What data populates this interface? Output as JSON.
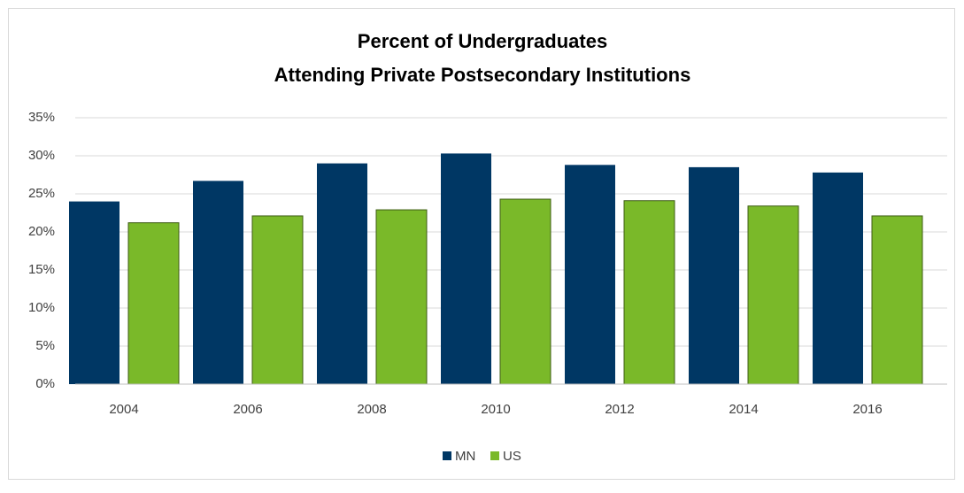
{
  "chart_data": {
    "type": "bar",
    "title": [
      "Percent of Undergraduates",
      "Attending Private Postsecondary Institutions"
    ],
    "categories": [
      "2004",
      "2006",
      "2008",
      "2010",
      "2012",
      "2014",
      "2016"
    ],
    "series": [
      {
        "name": "MN",
        "color": "#003764",
        "values": [
          24,
          26.7,
          29,
          30.3,
          28.8,
          28.5,
          27.8
        ]
      },
      {
        "name": "US",
        "color": "#7ab929",
        "values": [
          21.2,
          22.1,
          22.9,
          24.3,
          24.1,
          23.4,
          22.1
        ]
      }
    ],
    "ylim": [
      0,
      35
    ],
    "yticks": [
      {
        "value": 0,
        "label": "0%"
      },
      {
        "value": 5,
        "label": "5%"
      },
      {
        "value": 10,
        "label": "10%"
      },
      {
        "value": 15,
        "label": "15%"
      },
      {
        "value": 20,
        "label": "20%"
      },
      {
        "value": 25,
        "label": "25%"
      },
      {
        "value": 30,
        "label": "30%"
      },
      {
        "value": 35,
        "label": "35%"
      }
    ],
    "grid": true,
    "legend": "bottom"
  }
}
